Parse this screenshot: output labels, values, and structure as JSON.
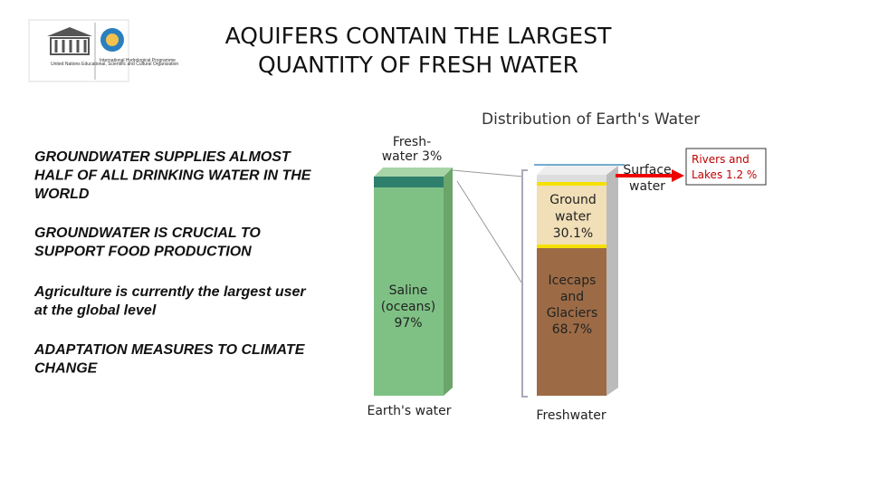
{
  "header": {
    "title_lines": [
      "AQUIFERS CONTAIN THE LARGEST",
      "QUANTITY OF FRESH WATER"
    ],
    "logos": [
      "United Nations Educational, Scientific and Cultural Organization",
      "International Hydrological Programme"
    ]
  },
  "bullets": [
    [
      "GROUNDWATER SUPPLIES  ALMOST",
      "HALF OF ALL DRINKING WATER IN THE",
      "WORLD"
    ],
    [
      "GROUNDWATER  IS CRUCIAL  TO",
      "SUPPORT FOOD PRODUCTION"
    ],
    [
      "Agriculture is currently the largest user",
      "at the global level"
    ],
    [
      "ADAPTATION MEASURES TO CLIMATE",
      "CHANGE"
    ]
  ],
  "figure": {
    "title": "Distribution of Earth's Water",
    "fresh": [
      "Fresh-",
      "water 3%"
    ],
    "saline": [
      "Saline",
      "(oceans)",
      "97%"
    ],
    "left_caption": "Earth's water",
    "surface": [
      "Surface",
      "water"
    ],
    "ground": [
      "Ground",
      "water",
      "30.1%"
    ],
    "ice": [
      "Icecaps",
      "and",
      "Glaciers",
      "68.7%"
    ],
    "right_caption": "Freshwater",
    "callout": [
      "Rivers and",
      "Lakes 1.2 %"
    ]
  }
}
